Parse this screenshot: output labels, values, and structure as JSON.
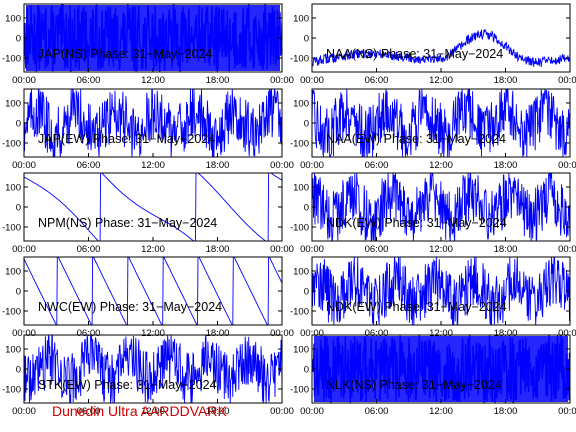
{
  "footer_text": "Dunedin Ultra AARDDVARK",
  "colors": {
    "trace": "#0000ff",
    "axis": "#000000",
    "footer": "#cc0000"
  },
  "chart_data": [
    {
      "type": "line",
      "title": "JAP(NS) Phase: 31−May−2024",
      "x_ticks": [
        "00:00",
        "06:00",
        "12:00",
        "18:00",
        "00:00"
      ],
      "y_ticks": [
        100,
        0,
        -100
      ],
      "ylim": [
        -170,
        170
      ],
      "xlim_hours": [
        0,
        24
      ],
      "style": "dense-fill"
    },
    {
      "type": "line",
      "title": "NAA(NS) Phase: 31−May−2024",
      "x_ticks": [
        "00:00",
        "06:00",
        "12:00",
        "18:00",
        "00:00"
      ],
      "y_ticks": [
        100,
        0,
        -100
      ],
      "ylim": [
        -170,
        170
      ],
      "xlim_hours": [
        0,
        24
      ],
      "style": "noisy-wraps"
    },
    {
      "type": "line",
      "title": "JAP(EW) Phase: 31−May−2024",
      "x_ticks": [
        "00:00",
        "06:00",
        "12:00",
        "18:00",
        "00:00"
      ],
      "y_ticks": [
        100,
        0,
        -100
      ],
      "ylim": [
        -170,
        170
      ],
      "xlim_hours": [
        0,
        24
      ],
      "style": "noisy-dense"
    },
    {
      "type": "line",
      "title": "NAA(EW) Phase: 31−May−2024",
      "x_ticks": [
        "00:00",
        "06:00",
        "12:00",
        "18:00",
        "00:00"
      ],
      "y_ticks": [
        100,
        0,
        -100
      ],
      "ylim": [
        -170,
        170
      ],
      "xlim_hours": [
        0,
        24
      ],
      "style": "noisy-dense"
    },
    {
      "type": "line",
      "title": "NPM(NS) Phase: 31−May−2024",
      "x_ticks": [
        "00:00",
        "06:00",
        "12:00",
        "18:00",
        "00:00"
      ],
      "y_ticks": [
        100,
        0,
        -100
      ],
      "ylim": [
        -170,
        170
      ],
      "xlim_hours": [
        0,
        24
      ],
      "style": "smooth-wraps"
    },
    {
      "type": "line",
      "title": "NDK(EW) Phase: 31−May−2024",
      "x_ticks": [
        "00:00",
        "06:00",
        "12:00",
        "18:00",
        "00:00"
      ],
      "y_ticks": [
        100,
        0,
        -100
      ],
      "ylim": [
        -170,
        170
      ],
      "xlim_hours": [
        0,
        24
      ],
      "style": "noisy-dense"
    },
    {
      "type": "line",
      "title": "NWC(EW) Phase: 31−May−2024",
      "x_ticks": [
        "00:00",
        "06:00",
        "12:00",
        "18:00",
        "00:00"
      ],
      "y_ticks": [
        100,
        0,
        -100
      ],
      "ylim": [
        -170,
        170
      ],
      "xlim_hours": [
        0,
        24
      ],
      "style": "sawtooth"
    },
    {
      "type": "line",
      "title": "NDK(EW) Phase: 31−May−2024",
      "x_ticks": [
        "00:00",
        "06:00",
        "12:00",
        "18:00",
        "00:00"
      ],
      "y_ticks": [
        100,
        0,
        -100
      ],
      "ylim": [
        -170,
        170
      ],
      "xlim_hours": [
        0,
        24
      ],
      "style": "noisy-dense"
    },
    {
      "type": "line",
      "title": "STK(EW) Phase: 31−May−2024",
      "x_ticks": [
        "00:00",
        "06:00",
        "12:00",
        "18:00",
        "00:00"
      ],
      "y_ticks": [
        100,
        0,
        -100
      ],
      "ylim": [
        -170,
        170
      ],
      "xlim_hours": [
        0,
        24
      ],
      "style": "noisy-dense"
    },
    {
      "type": "line",
      "title": "NLK(NS) Phase: 31−May−2024",
      "x_ticks": [
        "00:00",
        "06:00",
        "12:00",
        "18:00",
        "00:00"
      ],
      "y_ticks": [
        100,
        0,
        -100
      ],
      "ylim": [
        -170,
        170
      ],
      "xlim_hours": [
        0,
        24
      ],
      "style": "dense-fill"
    }
  ]
}
